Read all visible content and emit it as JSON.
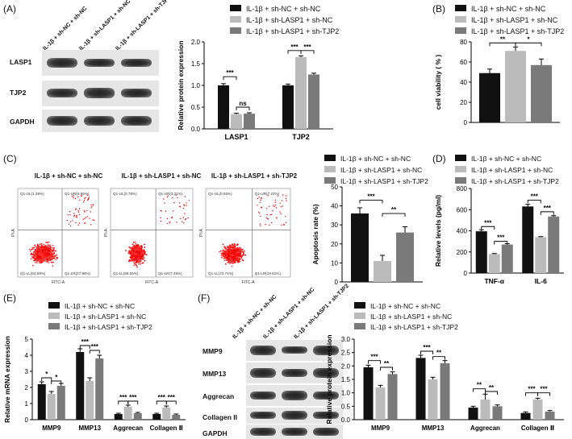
{
  "colors": {
    "s1": "#111111",
    "s2": "#bbbbbb",
    "s3": "#7a7a7a"
  },
  "legend": [
    "IL-1β + sh-NC + sh-NC",
    "IL-1β + sh-LASP1 + sh-NC",
    "IL-1β + sh-LASP1 + sh-TJP2"
  ],
  "panels": {
    "A": "(A)",
    "B": "(B)",
    "C": "(C)",
    "D": "(D)",
    "E": "(E)",
    "F": "(F)"
  },
  "wbA": {
    "lanes": [
      "IL-1β + sh-NC + sh-NC",
      "IL-1β + sh-LASP1 + sh-NC",
      "IL-1β + sh-LASP1 + sh-TJP2"
    ],
    "rows": [
      "LASP1",
      "TJP2",
      "GAPDH"
    ]
  },
  "wbF": {
    "lanes": [
      "IL-1β + sh-NC + sh-NC",
      "IL-1β + sh-LASP1 + sh-NC",
      "IL-1β + sh-LASP1 + sh-TJP2"
    ],
    "rows": [
      "MMP9",
      "MMP13",
      "Aggrecan",
      "Collagen II",
      "GAPDH"
    ]
  },
  "facs": {
    "titles": [
      "IL-1β + sh-NC + sh-NC",
      "IL-1β + sh-LASP1 + sh-NC",
      "IL-1β + sh-LASP1 + sh-TJP2"
    ],
    "xlabel": "FITC-A",
    "ylabel": "PI-A",
    "quadrants": [
      {
        "ul": "Q1-UL(1.39%)",
        "ur": "Q1-UR(6.95%)",
        "ll": "Q1-LL(63.69%)",
        "lr": "Q1-LR(27.96%)"
      },
      {
        "ul": "Q1-UL(0.78%)",
        "ur": "Q1-UR(3.21%)",
        "ll": "Q1-LL(88.55%)",
        "lr": "Q1-LR(7.46%)"
      },
      {
        "ul": "Q1-UL(0.55%)",
        "ur": "Q1-UR(7.22%)",
        "ll": "Q1-LL(72.71%)",
        "lr": "Q1-LR(19.51%)"
      }
    ]
  },
  "chart_data": [
    {
      "id": "A",
      "type": "bar",
      "ylabel": "Relative protein expression",
      "ylim": [
        0,
        2.0
      ],
      "yticks": [
        0.0,
        0.5,
        1.0,
        1.5,
        2.0
      ],
      "categories": [
        "LASP1",
        "TJP2"
      ],
      "series": [
        {
          "name": "IL-1β + sh-NC + sh-NC",
          "values": [
            1.0,
            1.0
          ],
          "err": [
            0.04,
            0.03
          ]
        },
        {
          "name": "IL-1β + sh-LASP1 + sh-NC",
          "values": [
            0.34,
            1.65
          ],
          "err": [
            0.02,
            0.03
          ]
        },
        {
          "name": "IL-1β + sh-LASP1 + sh-TJP2",
          "values": [
            0.35,
            1.25
          ],
          "err": [
            0.02,
            0.03
          ]
        }
      ],
      "annotations": [
        {
          "cat": 0,
          "from": 0,
          "to": 1,
          "level": 1.2,
          "text": "***"
        },
        {
          "cat": 0,
          "from": 1,
          "to": 2,
          "level": 0.5,
          "text": "ns"
        },
        {
          "cat": 1,
          "from": 0,
          "to": 1,
          "level": 1.8,
          "text": "***"
        },
        {
          "cat": 1,
          "from": 1,
          "to": 2,
          "level": 1.8,
          "text": "***"
        }
      ]
    },
    {
      "id": "B",
      "type": "bar",
      "ylabel": "cell viability ( % )",
      "ylim": [
        0,
        80
      ],
      "yticks": [
        0,
        20,
        40,
        60,
        80
      ],
      "categories": [
        ""
      ],
      "series": [
        {
          "name": "IL-1β + sh-NC + sh-NC",
          "values": [
            49
          ],
          "err": [
            4
          ]
        },
        {
          "name": "IL-1β + sh-LASP1 + sh-NC",
          "values": [
            71
          ],
          "err": [
            4
          ]
        },
        {
          "name": "IL-1β + sh-LASP1 + sh-TJP2",
          "values": [
            57
          ],
          "err": [
            6
          ]
        }
      ],
      "annotations": [
        {
          "cat": 0,
          "from": 0,
          "to": 1,
          "level": 79,
          "text": "**"
        },
        {
          "cat": 0,
          "from": 1,
          "to": 2,
          "level": 79,
          "text": "*"
        }
      ]
    },
    {
      "id": "C",
      "type": "bar",
      "ylabel": "Apoptosis rate (%)",
      "ylim": [
        0,
        50
      ],
      "yticks": [
        0,
        10,
        20,
        30,
        40,
        50
      ],
      "categories": [
        ""
      ],
      "series": [
        {
          "name": "IL-1β + sh-NC + sh-NC",
          "values": [
            36
          ],
          "err": [
            3
          ]
        },
        {
          "name": "IL-1β + sh-LASP1 + sh-NC",
          "values": [
            11
          ],
          "err": [
            3
          ]
        },
        {
          "name": "IL-1β + sh-LASP1 + sh-TJP2",
          "values": [
            26
          ],
          "err": [
            3
          ]
        }
      ],
      "annotations": [
        {
          "cat": 0,
          "from": 0,
          "to": 1,
          "level": 43,
          "text": "***"
        },
        {
          "cat": 0,
          "from": 1,
          "to": 2,
          "level": 36,
          "text": "**"
        }
      ]
    },
    {
      "id": "D",
      "type": "bar",
      "ylabel": "Relative levels (pg/ml)",
      "ylim": [
        0,
        800
      ],
      "yticks": [
        0,
        200,
        400,
        600,
        800
      ],
      "categories": [
        "TNF-α",
        "IL-6"
      ],
      "series": [
        {
          "name": "IL-1β + sh-NC + sh-NC",
          "values": [
            395,
            630
          ],
          "err": [
            15,
            20
          ]
        },
        {
          "name": "IL-1β + sh-LASP1 + sh-NC",
          "values": [
            180,
            340
          ],
          "err": [
            5,
            5
          ]
        },
        {
          "name": "IL-1β + sh-LASP1 + sh-TJP2",
          "values": [
            270,
            535
          ],
          "err": [
            8,
            8
          ]
        }
      ],
      "annotations": [
        {
          "cat": 0,
          "from": 0,
          "to": 1,
          "level": 440,
          "text": "***"
        },
        {
          "cat": 0,
          "from": 1,
          "to": 2,
          "level": 300,
          "text": "***"
        },
        {
          "cat": 1,
          "from": 0,
          "to": 1,
          "level": 690,
          "text": "***"
        },
        {
          "cat": 1,
          "from": 1,
          "to": 2,
          "level": 580,
          "text": "***"
        }
      ]
    },
    {
      "id": "E",
      "type": "bar",
      "ylabel": "Relative mRNA expression",
      "ylim": [
        0,
        5
      ],
      "yticks": [
        0,
        1,
        2,
        3,
        4,
        5
      ],
      "categories": [
        "MMP9",
        "MMP13",
        "Aggrecan",
        "Collagen Ⅱ"
      ],
      "series": [
        {
          "name": "IL-1β + sh-NC + sh-NC",
          "values": [
            2.2,
            4.2,
            0.35,
            0.35
          ],
          "err": [
            0.15,
            0.2,
            0.05,
            0.05
          ]
        },
        {
          "name": "IL-1β + sh-LASP1 + sh-NC",
          "values": [
            1.6,
            2.4,
            0.8,
            0.75
          ],
          "err": [
            0.15,
            0.2,
            0.1,
            0.1
          ]
        },
        {
          "name": "IL-1β + sh-LASP1 + sh-TJP2",
          "values": [
            2.1,
            3.8,
            0.4,
            0.3
          ],
          "err": [
            0.15,
            0.2,
            0.05,
            0.05
          ]
        }
      ],
      "annotations": [
        {
          "cat": 0,
          "from": 0,
          "to": 1,
          "level": 2.6,
          "text": "*"
        },
        {
          "cat": 0,
          "from": 1,
          "to": 2,
          "level": 2.4,
          "text": "*"
        },
        {
          "cat": 1,
          "from": 0,
          "to": 1,
          "level": 4.6,
          "text": "***"
        },
        {
          "cat": 1,
          "from": 1,
          "to": 2,
          "level": 4.3,
          "text": "***"
        },
        {
          "cat": 2,
          "from": 0,
          "to": 1,
          "level": 1.15,
          "text": "***"
        },
        {
          "cat": 2,
          "from": 1,
          "to": 2,
          "level": 1.15,
          "text": "***"
        },
        {
          "cat": 3,
          "from": 0,
          "to": 1,
          "level": 1.15,
          "text": "***"
        },
        {
          "cat": 3,
          "from": 1,
          "to": 2,
          "level": 1.15,
          "text": "***"
        }
      ]
    },
    {
      "id": "F",
      "type": "bar",
      "ylabel": "Relative protein expression",
      "ylim": [
        0,
        3.0
      ],
      "yticks": [
        0.0,
        0.5,
        1.0,
        1.5,
        2.0,
        2.5,
        3.0
      ],
      "categories": [
        "MMP9",
        "MMP13",
        "Aggrecan",
        "Collagen Ⅱ"
      ],
      "series": [
        {
          "name": "IL-1β + sh-NC + sh-NC",
          "values": [
            1.95,
            2.3,
            0.45,
            0.25
          ],
          "err": [
            0.08,
            0.1,
            0.05,
            0.04
          ]
        },
        {
          "name": "IL-1β + sh-LASP1 + sh-NC",
          "values": [
            1.2,
            1.5,
            0.75,
            0.75
          ],
          "err": [
            0.08,
            0.08,
            0.2,
            0.05
          ]
        },
        {
          "name": "IL-1β + sh-LASP1 + sh-TJP2",
          "values": [
            1.7,
            2.1,
            0.5,
            0.3
          ],
          "err": [
            0.08,
            0.1,
            0.05,
            0.04
          ]
        }
      ],
      "annotations": [
        {
          "cat": 0,
          "from": 0,
          "to": 1,
          "level": 2.2,
          "text": "***"
        },
        {
          "cat": 0,
          "from": 1,
          "to": 2,
          "level": 1.95,
          "text": "**"
        },
        {
          "cat": 1,
          "from": 0,
          "to": 1,
          "level": 2.55,
          "text": "***"
        },
        {
          "cat": 1,
          "from": 1,
          "to": 2,
          "level": 2.35,
          "text": "**"
        },
        {
          "cat": 2,
          "from": 0,
          "to": 1,
          "level": 1.15,
          "text": "**"
        },
        {
          "cat": 2,
          "from": 1,
          "to": 2,
          "level": 1.05,
          "text": "**"
        },
        {
          "cat": 3,
          "from": 0,
          "to": 1,
          "level": 1.0,
          "text": "***"
        },
        {
          "cat": 3,
          "from": 1,
          "to": 2,
          "level": 1.0,
          "text": "***"
        }
      ]
    }
  ]
}
